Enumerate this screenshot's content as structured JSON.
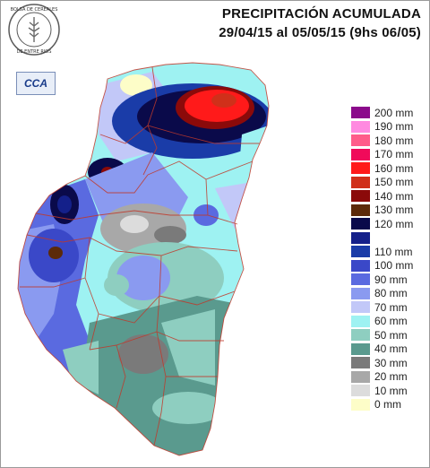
{
  "header": {
    "title_line1": "PRECIPITACIÓN ACUMULADA",
    "title_line2": "29/04/15 al 05/05/15 (9hs 06/05)"
  },
  "logos": {
    "seal_text": "BOLSA DE CEREALES DE ENTRE RIOS",
    "cca_text": "CCA"
  },
  "legend": [
    {
      "label": "200 mm",
      "color": "#8b0a8b"
    },
    {
      "label": "190 mm",
      "color": "#ff8ae0"
    },
    {
      "label": "180 mm",
      "color": "#ff5c8a"
    },
    {
      "label": "170 mm",
      "color": "#f00a5a"
    },
    {
      "label": "160 mm",
      "color": "#ff1a1a"
    },
    {
      "label": "150 mm",
      "color": "#d0301a"
    },
    {
      "label": "140 mm",
      "color": "#8b0a0a"
    },
    {
      "label": "130 mm",
      "color": "#5c2a0a"
    },
    {
      "label": "120 mm",
      "color": "#0a0a4a"
    },
    {
      "label": "",
      "color": "#14208a"
    },
    {
      "label": "110 mm",
      "color": "#1a3ca8"
    },
    {
      "label": "100 mm",
      "color": "#3a48c8"
    },
    {
      "label": "90 mm",
      "color": "#5a6ae0"
    },
    {
      "label": "80 mm",
      "color": "#8a9af0"
    },
    {
      "label": "70 mm",
      "color": "#c2c8f8"
    },
    {
      "label": "60 mm",
      "color": "#9ef2f2"
    },
    {
      "label": "50 mm",
      "color": "#8ecec0"
    },
    {
      "label": "40 mm",
      "color": "#5a9a8e"
    },
    {
      "label": "30 mm",
      "color": "#7a7a7a"
    },
    {
      "label": "20 mm",
      "color": "#a8a8a8"
    },
    {
      "label": "10 mm",
      "color": "#dcdcdc"
    },
    {
      "label": "0 mm",
      "color": "#fdfdc8"
    }
  ]
}
